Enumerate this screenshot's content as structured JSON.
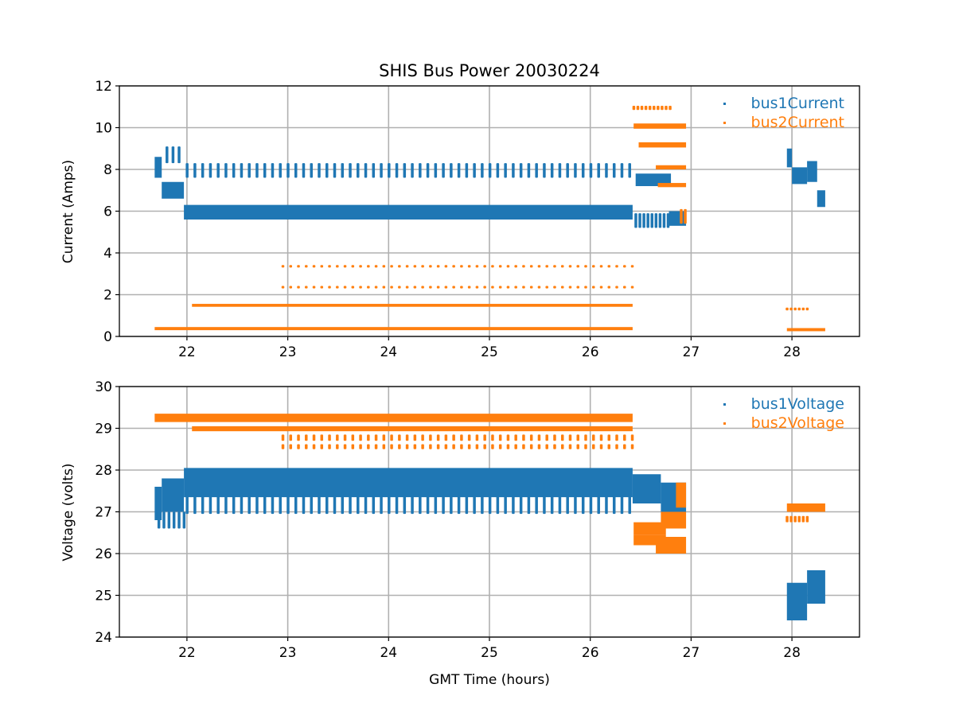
{
  "chart_data": [
    {
      "type": "scatter",
      "title": "SHIS Bus Power 20030224",
      "xlabel": "",
      "ylabel": "Current (Amps)",
      "xlim": [
        21.33,
        28.67
      ],
      "ylim": [
        0,
        12
      ],
      "xticks": [
        22,
        23,
        24,
        25,
        26,
        27,
        28
      ],
      "yticks": [
        0,
        2,
        4,
        6,
        8,
        10,
        12
      ],
      "grid": true,
      "legend_position": "top-right",
      "series": [
        {
          "name": "bus1Current",
          "color": "#1f77b4",
          "bands": [
            [
              21.68,
              21.75,
              7.6,
              8.6
            ],
            [
              21.75,
              21.97,
              6.6,
              7.4
            ],
            [
              21.97,
              26.42,
              5.6,
              6.3
            ],
            [
              26.45,
              26.8,
              7.2,
              7.8
            ],
            [
              26.78,
              26.95,
              5.3,
              6.0
            ],
            [
              27.95,
              28.0,
              8.1,
              9.0
            ],
            [
              28.0,
              28.15,
              7.3,
              8.1
            ],
            [
              28.15,
              28.25,
              7.4,
              8.4
            ],
            [
              28.25,
              28.33,
              6.2,
              7.0
            ]
          ],
          "pulses": [
            [
              21.8,
              21.97,
              0.06,
              8.3,
              9.1
            ],
            [
              22.0,
              26.42,
              0.077,
              7.6,
              8.3
            ],
            [
              26.45,
              26.78,
              0.04,
              5.2,
              5.9
            ]
          ]
        },
        {
          "name": "bus2Current",
          "color": "#ff7f0e",
          "bands": [
            [
              21.68,
              26.42,
              0.3,
              0.45
            ],
            [
              22.05,
              26.42,
              1.42,
              1.56
            ],
            [
              26.43,
              26.95,
              9.95,
              10.2
            ],
            [
              26.48,
              26.95,
              9.05,
              9.3
            ],
            [
              26.65,
              26.95,
              8.0,
              8.2
            ],
            [
              26.67,
              26.95,
              7.15,
              7.35
            ],
            [
              27.95,
              28.33,
              0.25,
              0.4
            ]
          ],
          "pulses": [
            [
              22.95,
              26.42,
              0.077,
              3.3,
              3.42
            ],
            [
              22.95,
              26.42,
              0.077,
              2.3,
              2.42
            ],
            [
              26.43,
              26.82,
              0.04,
              10.85,
              11.05
            ],
            [
              27.95,
              28.17,
              0.04,
              1.25,
              1.38
            ],
            [
              26.9,
              26.95,
              0.04,
              5.4,
              6.1
            ]
          ]
        }
      ]
    },
    {
      "type": "scatter",
      "title": "",
      "xlabel": "GMT Time (hours)",
      "ylabel": "Voltage (volts)",
      "xlim": [
        21.33,
        28.67
      ],
      "ylim": [
        24,
        30
      ],
      "xticks": [
        22,
        23,
        24,
        25,
        26,
        27,
        28
      ],
      "yticks": [
        24,
        25,
        26,
        27,
        28,
        29,
        30
      ],
      "grid": true,
      "legend_position": "top-right",
      "series": [
        {
          "name": "bus1Voltage",
          "color": "#1f77b4",
          "bands": [
            [
              21.68,
              21.75,
              26.8,
              27.6
            ],
            [
              21.75,
              21.97,
              27.0,
              27.8
            ],
            [
              21.97,
              26.42,
              27.35,
              28.05
            ],
            [
              26.42,
              26.7,
              27.2,
              27.9
            ],
            [
              26.7,
              26.95,
              27.0,
              27.7
            ],
            [
              27.95,
              28.15,
              24.4,
              25.3
            ],
            [
              28.15,
              28.33,
              24.8,
              25.6
            ]
          ],
          "pulses": [
            [
              21.72,
              21.97,
              0.05,
              26.6,
              27.0
            ],
            [
              22.0,
              26.42,
              0.077,
              26.95,
              27.4
            ]
          ]
        },
        {
          "name": "bus2Voltage",
          "color": "#ff7f0e",
          "bands": [
            [
              21.68,
              26.42,
              29.15,
              29.35
            ],
            [
              22.05,
              26.42,
              28.93,
              29.05
            ],
            [
              26.43,
              26.75,
              26.45,
              26.75
            ],
            [
              26.43,
              26.75,
              26.2,
              26.45
            ],
            [
              26.65,
              26.95,
              26.0,
              26.4
            ],
            [
              26.7,
              26.95,
              26.6,
              27.0
            ],
            [
              26.85,
              26.95,
              27.1,
              27.7
            ],
            [
              27.95,
              28.33,
              27.0,
              27.2
            ]
          ],
          "pulses": [
            [
              22.95,
              26.42,
              0.077,
              28.7,
              28.85
            ],
            [
              22.95,
              26.42,
              0.077,
              28.5,
              28.62
            ],
            [
              27.95,
              28.15,
              0.04,
              26.75,
              26.9
            ]
          ]
        }
      ]
    }
  ]
}
